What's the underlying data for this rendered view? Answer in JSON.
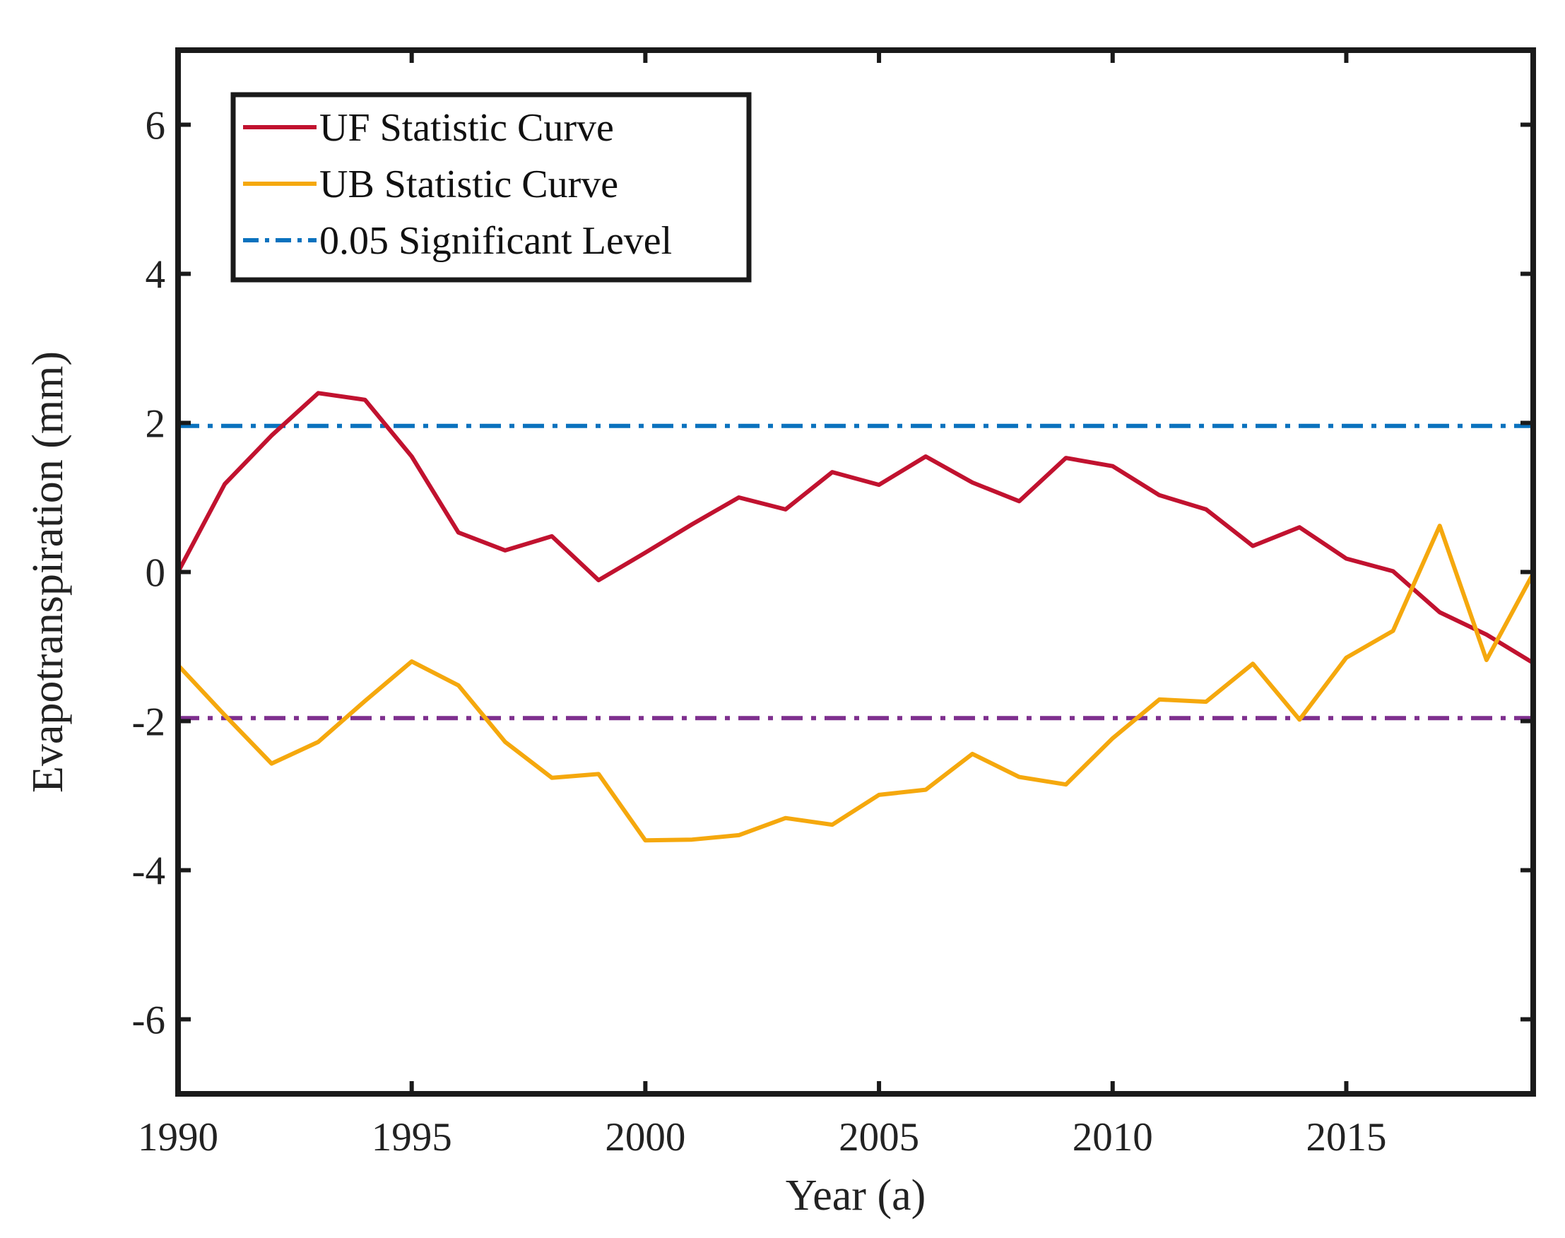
{
  "chart_data": {
    "type": "line",
    "title": "",
    "xlabel": "Year (a)",
    "ylabel": "Evapotranspiration (mm)",
    "xlim": [
      1990,
      2019
    ],
    "ylim": [
      -7,
      7
    ],
    "xticks": [
      1990,
      1995,
      2000,
      2005,
      2010,
      2015
    ],
    "yticks": [
      -6,
      -4,
      -2,
      0,
      2,
      4,
      6
    ],
    "grid": false,
    "legend_position": "top-left",
    "x": [
      1990,
      1991,
      1992,
      1993,
      1994,
      1995,
      1996,
      1997,
      1998,
      1999,
      2000,
      2001,
      2002,
      2003,
      2004,
      2005,
      2006,
      2007,
      2008,
      2009,
      2010,
      2011,
      2012,
      2013,
      2014,
      2015,
      2016,
      2017,
      2018,
      2019
    ],
    "series": [
      {
        "name": "UF Statistic Curve",
        "color": "#C1122F",
        "style": "solid",
        "values": [
          0.0,
          1.18,
          1.83,
          2.4,
          2.31,
          1.55,
          0.53,
          0.29,
          0.48,
          -0.11,
          0.26,
          0.64,
          1.0,
          0.84,
          1.34,
          1.17,
          1.55,
          1.2,
          0.95,
          1.53,
          1.42,
          1.03,
          0.84,
          0.35,
          0.6,
          0.18,
          0.01,
          -0.54,
          -0.84,
          -1.22
        ]
      },
      {
        "name": "UB Statistic Curve",
        "color": "#F5A80D",
        "style": "solid",
        "values": [
          -1.25,
          -1.92,
          -2.57,
          -2.28,
          -1.73,
          -1.2,
          -1.52,
          -2.28,
          -2.76,
          -2.71,
          -3.6,
          -3.59,
          -3.53,
          -3.3,
          -3.39,
          -2.99,
          -2.92,
          -2.44,
          -2.75,
          -2.85,
          -2.23,
          -1.71,
          -1.74,
          -1.23,
          -1.98,
          -1.15,
          -0.79,
          0.62,
          -1.18,
          -0.02
        ]
      },
      {
        "name": "0.05 Significant Level",
        "color": "#0A72BE",
        "style": "dashdot",
        "values": [
          1.96,
          1.96,
          1.96,
          1.96,
          1.96,
          1.96,
          1.96,
          1.96,
          1.96,
          1.96,
          1.96,
          1.96,
          1.96,
          1.96,
          1.96,
          1.96,
          1.96,
          1.96,
          1.96,
          1.96,
          1.96,
          1.96,
          1.96,
          1.96,
          1.96,
          1.96,
          1.96,
          1.96,
          1.96,
          1.96
        ]
      },
      {
        "color": "#7E2F8E",
        "style": "dashdot",
        "values": [
          -1.96,
          -1.96,
          -1.96,
          -1.96,
          -1.96,
          -1.96,
          -1.96,
          -1.96,
          -1.96,
          -1.96,
          -1.96,
          -1.96,
          -1.96,
          -1.96,
          -1.96,
          -1.96,
          -1.96,
          -1.96,
          -1.96,
          -1.96,
          -1.96,
          -1.96,
          -1.96,
          -1.96,
          -1.96,
          -1.96,
          -1.96,
          -1.96,
          -1.96,
          -1.96
        ]
      }
    ],
    "legend": [
      {
        "label": "UF Statistic Curve",
        "color": "#C1122F",
        "style": "solid"
      },
      {
        "label": "UB Statistic Curve",
        "color": "#F5A80D",
        "style": "solid"
      },
      {
        "label": "0.05 Significant Level",
        "color": "#0A72BE",
        "style": "dashdot"
      }
    ]
  }
}
